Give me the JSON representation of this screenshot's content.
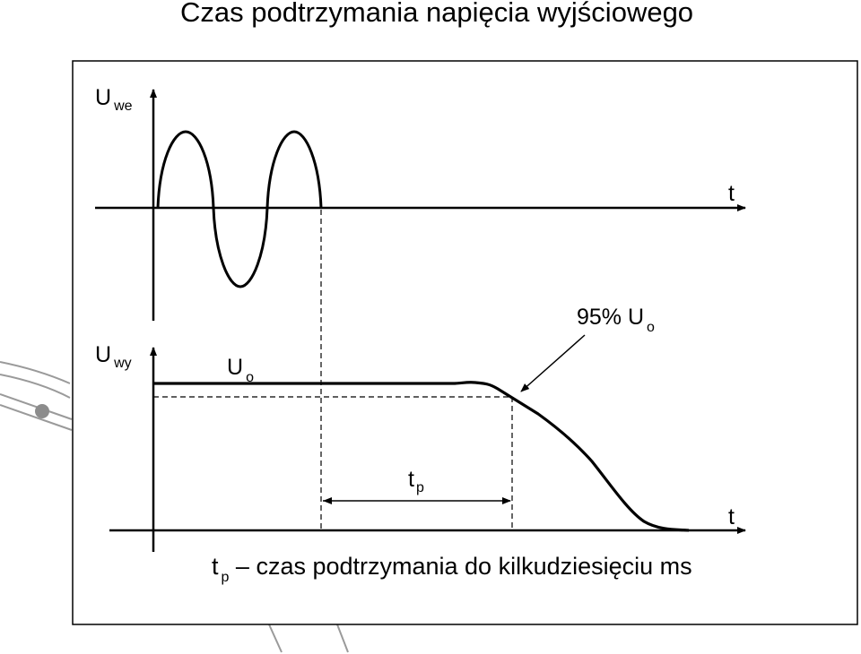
{
  "title": "Czas podtrzymania napięcia wyjściowego",
  "input_axis": {
    "label_main": "U",
    "label_sub": "we",
    "time_label": "t"
  },
  "output_axis": {
    "label_main": "U",
    "label_sub": "wy",
    "time_label": "t"
  },
  "level_label": {
    "main": "U",
    "sub": "o"
  },
  "threshold_label": {
    "text": "95% U",
    "sub": "o"
  },
  "hold_time_label": {
    "main": "t",
    "sub": "p"
  },
  "footnote": {
    "main": "t",
    "sub": "p",
    "text": " – czas podtrzymania do kilkudziesięciu ms"
  },
  "colors": {
    "line": "#000000",
    "frame": "#000000",
    "background": "#ffffff",
    "decoration": "#9a9a9a"
  }
}
